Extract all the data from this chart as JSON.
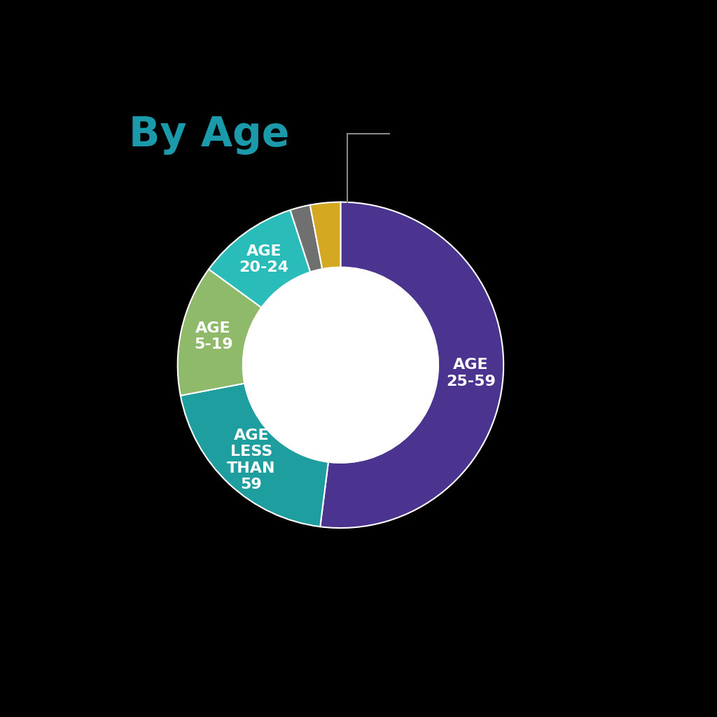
{
  "title": "By Age",
  "title_color": "#1a9aaa",
  "title_fontsize": 42,
  "background_color": "#000000",
  "slices": [
    {
      "label": "AGE\n25-59",
      "value": 52,
      "color": "#4b3490"
    },
    {
      "label": "AGE\nLESS\nTHAN\n59",
      "value": 20,
      "color": "#1f9ea0"
    },
    {
      "label": "AGE\n5-19",
      "value": 13,
      "color": "#8fba6a"
    },
    {
      "label": "AGE\n20-24",
      "value": 10,
      "color": "#2abcb8"
    },
    {
      "label": "",
      "value": 2,
      "color": "#707070"
    },
    {
      "label": "",
      "value": 3,
      "color": "#d4a820"
    }
  ],
  "wedge_edge_color": "#ffffff",
  "wedge_edge_width": 1.5,
  "label_color": "#ffffff",
  "label_fontsize": 16,
  "donut_width": 0.4,
  "start_angle": 90,
  "line_color": "#888888",
  "line_width": 1.5
}
